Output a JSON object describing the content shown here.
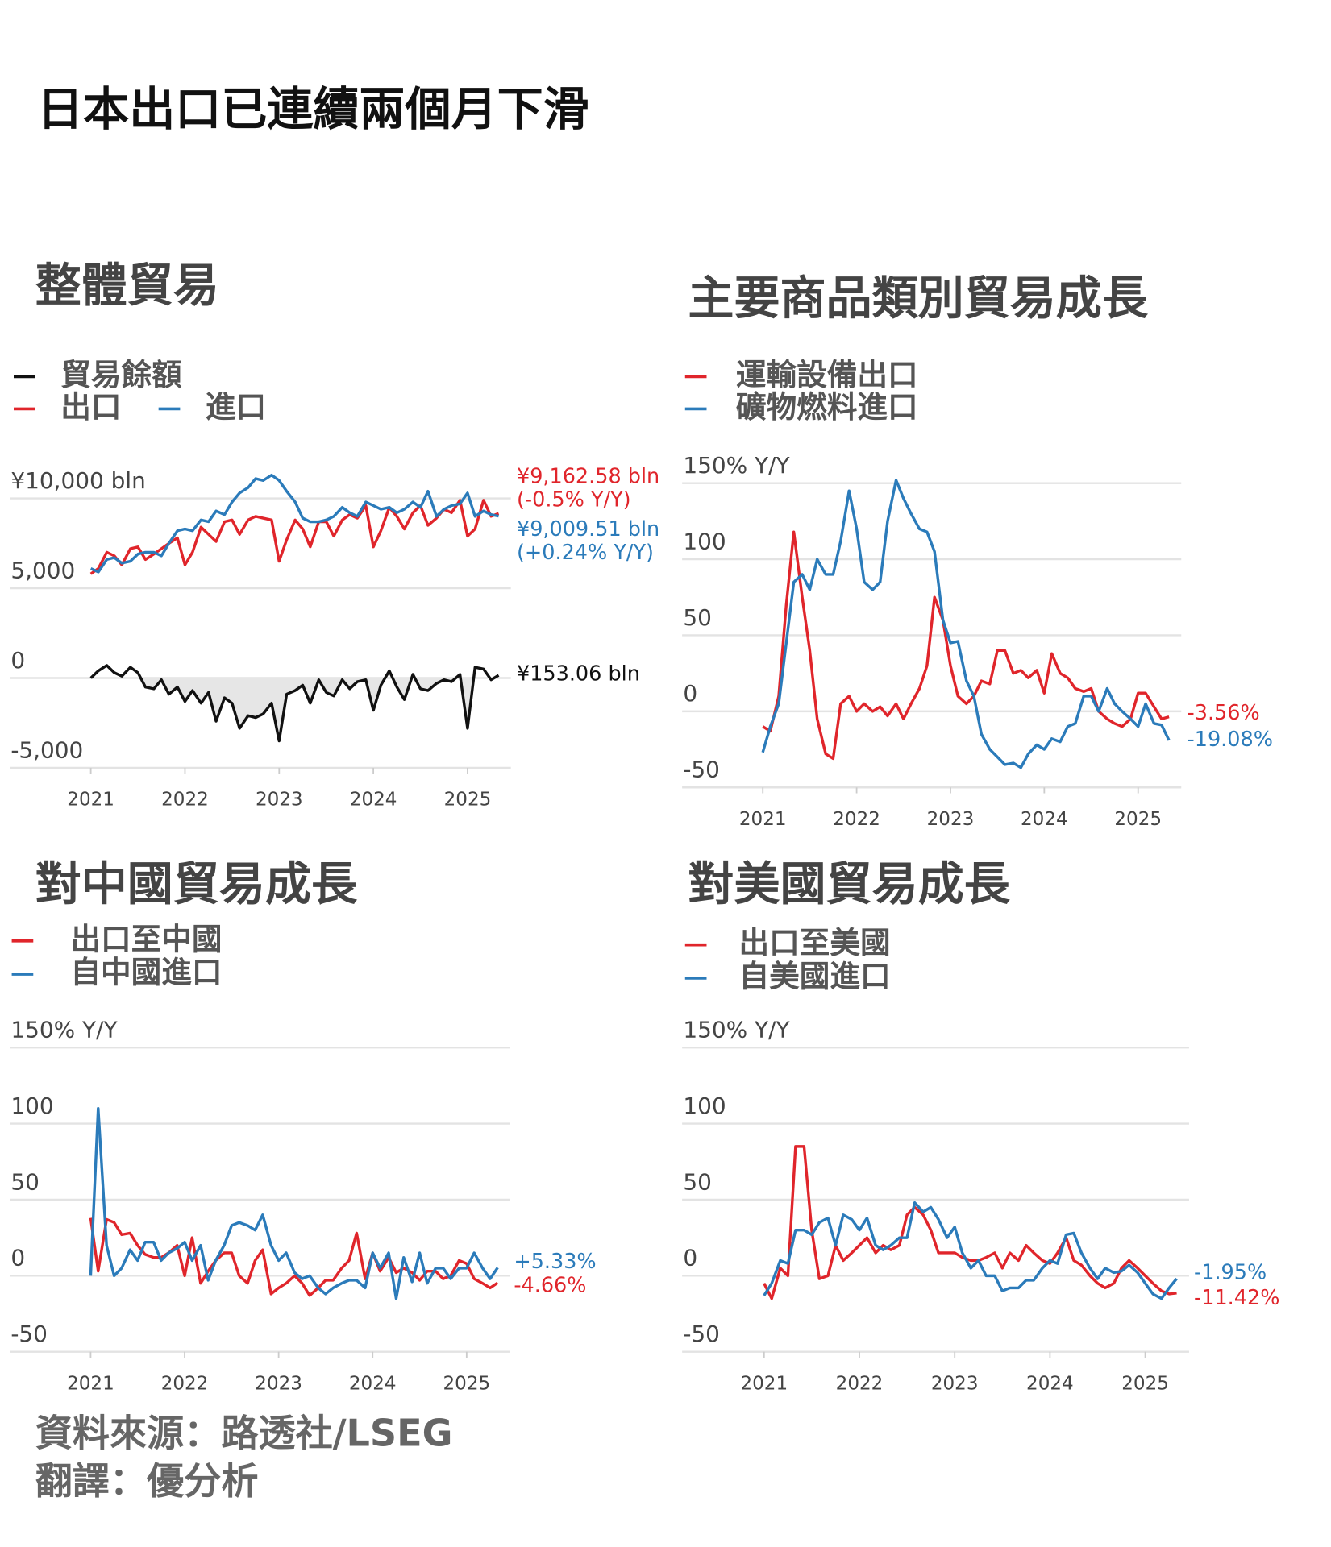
{
  "title": "日本出口已連續兩個月下滑",
  "footer": [
    "資料來源：路透社/LSEG",
    "翻譯：優分析"
  ],
  "chart_data": [
    {
      "type": "line",
      "title": "整體貿易",
      "x": [
        2021,
        2021.08,
        2021.17,
        2021.25,
        2021.33,
        2021.42,
        2021.5,
        2021.58,
        2021.67,
        2021.75,
        2021.83,
        2021.92,
        2022,
        2022.08,
        2022.17,
        2022.25,
        2022.33,
        2022.42,
        2022.5,
        2022.58,
        2022.67,
        2022.75,
        2022.83,
        2022.92,
        2023,
        2023.08,
        2023.17,
        2023.25,
        2023.33,
        2023.42,
        2023.5,
        2023.58,
        2023.67,
        2023.75,
        2023.83,
        2023.92,
        2024,
        2024.08,
        2024.17,
        2024.25,
        2024.33,
        2024.42,
        2024.5,
        2024.58,
        2024.67,
        2024.75,
        2024.83,
        2024.92,
        2025,
        2025.08,
        2025.17,
        2025.25,
        2025.33
      ],
      "xlim": [
        2020.14,
        2025.46
      ],
      "xticks": [
        2021,
        2022,
        2023,
        2024,
        2025
      ],
      "ylim": [
        -5000,
        11500
      ],
      "yticks": [
        {
          "value": -5000,
          "label": "-5,000"
        },
        0,
        {
          "value": 5000,
          "label": "5,000"
        },
        {
          "value": 10000,
          "label": "¥10,000 bln"
        }
      ],
      "grid": true,
      "series": [
        {
          "name": "貿易餘額",
          "color": "#111111",
          "area": true,
          "end_labels": [
            "¥153.06 bln"
          ],
          "values": [
            0,
            400,
            700,
            300,
            100,
            600,
            300,
            -500,
            -600,
            -100,
            -900,
            -500,
            -1300,
            -700,
            -1400,
            -800,
            -2400,
            -1100,
            -1400,
            -2800,
            -2100,
            -2200,
            -2000,
            -1400,
            -3500,
            -900,
            -700,
            -400,
            -1400,
            -100,
            -800,
            -1000,
            -100,
            -600,
            -200,
            -100,
            -1800,
            -400,
            400,
            -500,
            -1200,
            200,
            -600,
            -700,
            -300,
            -100,
            -200,
            200,
            -2800,
            600,
            500,
            -100,
            153.06
          ]
        },
        {
          "name": "出口",
          "color": "#e0252b",
          "end_labels": [
            "¥9,162.58 bln",
            "(-0.5% Y/Y)"
          ],
          "values": [
            5800,
            6100,
            7000,
            6800,
            6300,
            7200,
            7300,
            6600,
            6900,
            7200,
            7500,
            7800,
            6300,
            7000,
            8400,
            8000,
            7600,
            8700,
            8800,
            8000,
            8800,
            9000,
            8900,
            8800,
            6500,
            7700,
            8800,
            8300,
            7300,
            8700,
            8700,
            7900,
            8800,
            9100,
            8900,
            9600,
            7300,
            8200,
            9500,
            9000,
            8300,
            9200,
            9600,
            8500,
            8900,
            9400,
            9200,
            9900,
            7900,
            8300,
            9900,
            9000,
            9162.58
          ]
        },
        {
          "name": "進口",
          "color": "#2b7bba",
          "end_labels": [
            "¥9,009.51 bln",
            "(+0.24% Y/Y)"
          ],
          "values": [
            6100,
            5900,
            6600,
            6700,
            6400,
            6500,
            6900,
            7000,
            7000,
            6800,
            7500,
            8200,
            8300,
            8200,
            8800,
            8700,
            9300,
            9100,
            9800,
            10300,
            10600,
            11100,
            11000,
            11300,
            11000,
            10400,
            9800,
            8900,
            8700,
            8700,
            8800,
            9000,
            9500,
            9200,
            9000,
            9800,
            9600,
            9400,
            9500,
            9200,
            9400,
            9800,
            9500,
            10400,
            9000,
            9400,
            9600,
            9700,
            10300,
            9000,
            9300,
            9100,
            9009.51
          ]
        }
      ]
    },
    {
      "type": "line",
      "title": "主要商品類別貿易成長",
      "x": [
        2021,
        2021.08,
        2021.17,
        2021.25,
        2021.33,
        2021.42,
        2021.5,
        2021.58,
        2021.67,
        2021.75,
        2021.83,
        2021.92,
        2022,
        2022.08,
        2022.17,
        2022.25,
        2022.33,
        2022.42,
        2022.5,
        2022.58,
        2022.67,
        2022.75,
        2022.83,
        2022.92,
        2023,
        2023.08,
        2023.17,
        2023.25,
        2023.33,
        2023.42,
        2023.5,
        2023.58,
        2023.67,
        2023.75,
        2023.83,
        2023.92,
        2024,
        2024.08,
        2024.17,
        2024.25,
        2024.33,
        2024.42,
        2024.5,
        2024.58,
        2024.67,
        2024.75,
        2024.83,
        2024.92,
        2025,
        2025.08,
        2025.17,
        2025.25,
        2025.33
      ],
      "xlim": [
        2020.14,
        2025.46
      ],
      "xticks": [
        2021,
        2022,
        2023,
        2024,
        2025
      ],
      "ylim": [
        -50,
        150
      ],
      "yticks": [
        -50,
        0,
        50,
        100,
        {
          "value": 150,
          "label": "150% Y/Y"
        }
      ],
      "grid": true,
      "series": [
        {
          "name": "運輸設備出口",
          "color": "#e0252b",
          "end_labels": [
            "-3.56%"
          ],
          "values": [
            -10,
            -13,
            10,
            70,
            118,
            75,
            40,
            -5,
            -28,
            -31,
            5,
            10,
            0,
            5,
            0,
            3,
            -3,
            5,
            -5,
            5,
            15,
            30,
            75,
            60,
            30,
            10,
            5,
            10,
            20,
            18,
            40,
            40,
            25,
            27,
            22,
            27,
            12,
            38,
            25,
            22,
            15,
            13,
            15,
            0,
            -5,
            -8,
            -10,
            -5,
            12,
            12,
            3,
            -5,
            -3.56
          ]
        },
        {
          "name": "礦物燃料進口",
          "color": "#2b7bba",
          "end_labels": [
            "-19.08%"
          ],
          "values": [
            -27,
            -10,
            5,
            45,
            85,
            90,
            80,
            100,
            90,
            90,
            112,
            145,
            120,
            85,
            80,
            85,
            125,
            152,
            140,
            130,
            120,
            118,
            105,
            60,
            45,
            46,
            20,
            10,
            -15,
            -25,
            -30,
            -35,
            -34,
            -37,
            -28,
            -22,
            -25,
            -18,
            -20,
            -10,
            -8,
            10,
            10,
            0,
            15,
            5,
            0,
            -5,
            -10,
            5,
            -8,
            -9,
            -19.08
          ]
        }
      ]
    },
    {
      "type": "line",
      "title": "對中國貿易成長",
      "x": [
        2021,
        2021.08,
        2021.17,
        2021.25,
        2021.33,
        2021.42,
        2021.5,
        2021.58,
        2021.67,
        2021.75,
        2021.83,
        2021.92,
        2022,
        2022.08,
        2022.17,
        2022.25,
        2022.33,
        2022.42,
        2022.5,
        2022.58,
        2022.67,
        2022.75,
        2022.83,
        2022.92,
        2023,
        2023.08,
        2023.17,
        2023.25,
        2023.33,
        2023.42,
        2023.5,
        2023.58,
        2023.67,
        2023.75,
        2023.83,
        2023.92,
        2024,
        2024.08,
        2024.17,
        2024.25,
        2024.33,
        2024.42,
        2024.5,
        2024.58,
        2024.67,
        2024.75,
        2024.83,
        2024.92,
        2025,
        2025.08,
        2025.17,
        2025.25,
        2025.33
      ],
      "xlim": [
        2020.14,
        2025.46
      ],
      "xticks": [
        2021,
        2022,
        2023,
        2024,
        2025
      ],
      "ylim": [
        -50,
        150
      ],
      "yticks": [
        -50,
        0,
        50,
        100,
        {
          "value": 150,
          "label": "150% Y/Y"
        }
      ],
      "grid": true,
      "series": [
        {
          "name": "出口至中國",
          "color": "#e0252b",
          "end_labels": [
            "-4.66%"
          ],
          "values": [
            38,
            3,
            37,
            35,
            27,
            28,
            20,
            14,
            12,
            12,
            15,
            20,
            0,
            25,
            -5,
            3,
            10,
            15,
            15,
            0,
            -5,
            10,
            17,
            -12,
            -8,
            -5,
            0,
            -5,
            -13,
            -8,
            -3,
            -3,
            5,
            10,
            28,
            -2,
            15,
            3,
            12,
            2,
            5,
            2,
            -3,
            3,
            3,
            -2,
            0,
            10,
            8,
            -2,
            -5,
            -8,
            -4.66
          ]
        },
        {
          "name": "自中國進口",
          "color": "#2b7bba",
          "end_labels": [
            "+5.33%"
          ],
          "values": [
            0,
            110,
            20,
            0,
            5,
            17,
            10,
            22,
            22,
            10,
            15,
            18,
            22,
            10,
            20,
            -3,
            10,
            20,
            33,
            35,
            33,
            30,
            40,
            20,
            10,
            15,
            2,
            -2,
            0,
            -8,
            -12,
            -8,
            -5,
            -3,
            -3,
            -8,
            15,
            5,
            15,
            -15,
            12,
            -4,
            15,
            -5,
            5,
            5,
            -2,
            5,
            5,
            15,
            5,
            -2,
            5.33
          ]
        }
      ]
    },
    {
      "type": "line",
      "title": "對美國貿易成長",
      "x": [
        2021,
        2021.08,
        2021.17,
        2021.25,
        2021.33,
        2021.42,
        2021.5,
        2021.58,
        2021.67,
        2021.75,
        2021.83,
        2021.92,
        2022,
        2022.08,
        2022.17,
        2022.25,
        2022.33,
        2022.42,
        2022.5,
        2022.58,
        2022.67,
        2022.75,
        2022.83,
        2022.92,
        2023,
        2023.08,
        2023.17,
        2023.25,
        2023.33,
        2023.42,
        2023.5,
        2023.58,
        2023.67,
        2023.75,
        2023.83,
        2023.92,
        2024,
        2024.08,
        2024.17,
        2024.25,
        2024.33,
        2024.42,
        2024.5,
        2024.58,
        2024.67,
        2024.75,
        2024.83,
        2024.92,
        2025,
        2025.08,
        2025.17,
        2025.25,
        2025.33
      ],
      "xlim": [
        2020.14,
        2025.46
      ],
      "xticks": [
        2021,
        2022,
        2023,
        2024,
        2025
      ],
      "ylim": [
        -50,
        150
      ],
      "yticks": [
        -50,
        0,
        50,
        100,
        {
          "value": 150,
          "label": "150% Y/Y"
        }
      ],
      "grid": true,
      "series": [
        {
          "name": "出口至美國",
          "color": "#e0252b",
          "end_labels": [
            "-11.42%"
          ],
          "values": [
            -5,
            -15,
            5,
            0,
            85,
            85,
            30,
            -2,
            0,
            20,
            10,
            15,
            20,
            25,
            15,
            20,
            17,
            20,
            40,
            45,
            40,
            30,
            15,
            15,
            15,
            12,
            10,
            10,
            12,
            15,
            5,
            15,
            10,
            20,
            15,
            10,
            8,
            15,
            25,
            10,
            7,
            0,
            -5,
            -8,
            -5,
            5,
            10,
            5,
            0,
            -5,
            -10,
            -12,
            -11.42
          ]
        },
        {
          "name": "自美國進口",
          "color": "#2b7bba",
          "end_labels": [
            "-1.95%"
          ],
          "values": [
            -13,
            -5,
            10,
            8,
            30,
            30,
            27,
            35,
            38,
            20,
            40,
            37,
            30,
            38,
            20,
            17,
            20,
            25,
            25,
            48,
            42,
            45,
            37,
            25,
            32,
            15,
            5,
            10,
            0,
            0,
            -10,
            -8,
            -8,
            -3,
            -3,
            5,
            10,
            8,
            27,
            28,
            15,
            5,
            -2,
            5,
            2,
            3,
            7,
            2,
            -5,
            -12,
            -15,
            -8,
            -1.95
          ]
        }
      ]
    }
  ]
}
